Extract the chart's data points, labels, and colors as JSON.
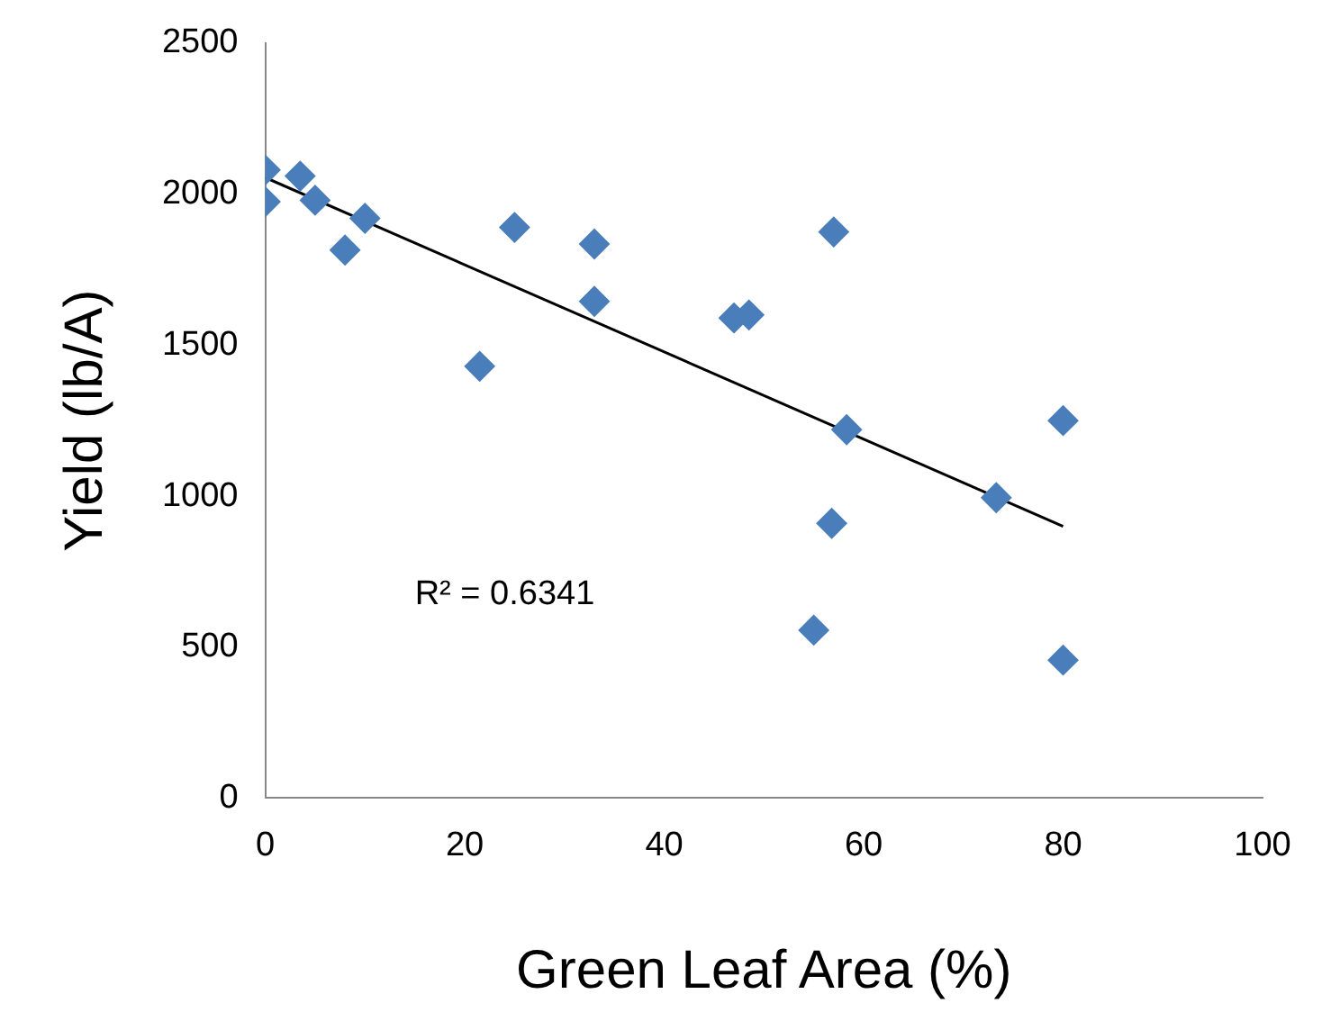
{
  "chart_data": {
    "type": "scatter",
    "xlabel": "Green Leaf Area (%)",
    "ylabel": "Yield (lb/A)",
    "marker": "diamond",
    "legend": false,
    "grid": false,
    "xlim": [
      0,
      100
    ],
    "xticks": [
      0,
      20,
      40,
      60,
      80,
      100
    ],
    "ylim": [
      0,
      2500
    ],
    "yticks": [
      0,
      500,
      1000,
      1500,
      2000,
      2500
    ],
    "annotations": [
      "R² = 0.6341"
    ],
    "series": [
      {
        "color": "#4a7ebb",
        "x": [
          0,
          0,
          3.5,
          5,
          10,
          8,
          25,
          33,
          33,
          21.5,
          47,
          48.5,
          57,
          58.3,
          80,
          56.8,
          73.3,
          55,
          80
        ],
        "values": [
          2080,
          1975,
          2060,
          1980,
          1920,
          1815,
          1890,
          1835,
          1645,
          1430,
          1590,
          1600,
          1875,
          1220,
          1250,
          910,
          995,
          556,
          457
        ]
      },
      {
        "type": "line",
        "color": "#000000",
        "marker": "none",
        "x": [
          0,
          80
        ],
        "values": [
          2055,
          900
        ]
      }
    ]
  }
}
